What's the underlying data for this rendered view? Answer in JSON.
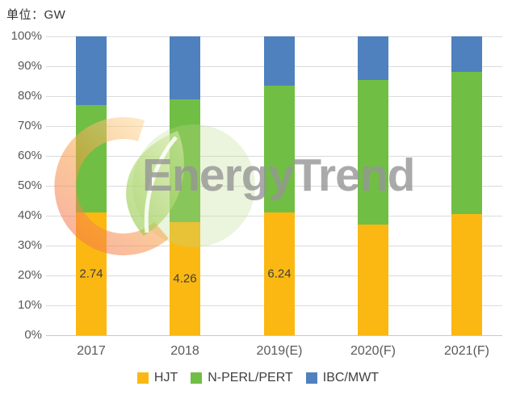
{
  "unit_label": "单位：GW",
  "watermark": {
    "text": "EnergyTrend"
  },
  "chart_data": {
    "type": "stacked-bar-100",
    "title": "",
    "unit": "GW",
    "categories": [
      "2017",
      "2018",
      "2019(E)",
      "2020(F)",
      "2021(F)"
    ],
    "series": [
      {
        "name": "HJT",
        "color": "#FBB813",
        "values": [
          41,
          38,
          41,
          37,
          40.5
        ],
        "labels": [
          "2.74",
          "4.26",
          "6.24",
          "",
          ""
        ]
      },
      {
        "name": "N-PERL/PERT",
        "color": "#71BE44",
        "values": [
          36,
          41,
          42.5,
          48.5,
          47.5
        ],
        "labels": [
          "",
          "",
          "",
          "",
          ""
        ]
      },
      {
        "name": "IBC/MWT",
        "color": "#4E81BD",
        "values": [
          23,
          21,
          16.5,
          14.5,
          12
        ],
        "labels": [
          "",
          "",
          "",
          "",
          ""
        ]
      }
    ],
    "y_ticks": [
      "100%",
      "90%",
      "80%",
      "70%",
      "60%",
      "50%",
      "40%",
      "30%",
      "20%",
      "10%",
      "0%"
    ],
    "ylim": [
      0,
      100
    ],
    "grid": true,
    "legend_position": "bottom"
  },
  "colors": {
    "gridline": "#DBDBDB",
    "axis_text": "#595959",
    "data_label_text": "#3F3F3F",
    "background": "#FFFFFF",
    "watermark_gray": "#969696",
    "watermark_orange": "#F7941E",
    "watermark_green": "#A4CE4E"
  }
}
